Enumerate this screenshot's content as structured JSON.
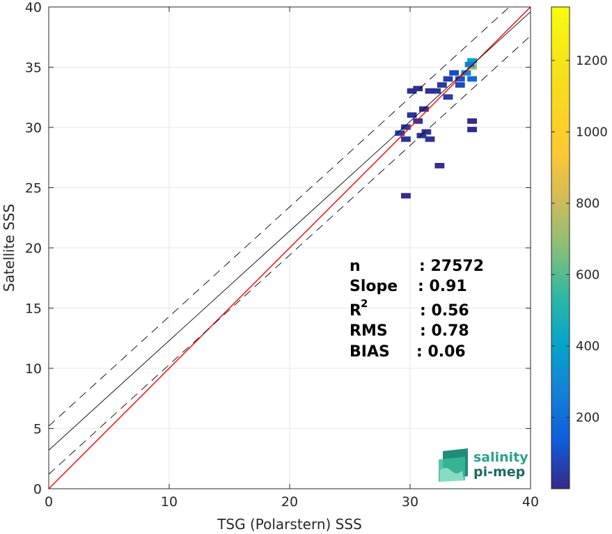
{
  "chart_data": {
    "type": "heatmap",
    "xlabel": "TSG (Polarstern) SSS",
    "ylabel": "Satellite SSS",
    "xlim": [
      0,
      40
    ],
    "ylim": [
      0,
      40
    ],
    "x_ticks": [
      0,
      10,
      20,
      30,
      40
    ],
    "y_ticks": [
      0,
      5,
      10,
      15,
      20,
      25,
      30,
      35,
      40
    ],
    "grid": true,
    "colorbar": {
      "range": [
        0,
        1350
      ],
      "ticks": [
        200,
        400,
        600,
        800,
        1000,
        1200
      ],
      "colormap": "parula"
    },
    "reference_lines": [
      {
        "name": "identity",
        "slope": 1.0,
        "intercept": 0.0,
        "color": "#ff0000",
        "style": "solid"
      },
      {
        "name": "regression",
        "slope": 0.91,
        "intercept": 3.2,
        "color": "#000000",
        "style": "solid"
      },
      {
        "name": "upper-bound",
        "slope": 0.91,
        "intercept": 5.2,
        "color": "#000000",
        "style": "dashed"
      },
      {
        "name": "lower-bound",
        "slope": 0.91,
        "intercept": 1.2,
        "color": "#000000",
        "style": "dashed"
      }
    ],
    "density_cells": [
      {
        "x": 34.0,
        "y": 34.0,
        "count": 120
      },
      {
        "x": 34.5,
        "y": 34.5,
        "count": 300
      },
      {
        "x": 35.0,
        "y": 35.0,
        "count": 700
      },
      {
        "x": 35.0,
        "y": 35.5,
        "count": 400
      },
      {
        "x": 34.8,
        "y": 35.2,
        "count": 250
      },
      {
        "x": 33.5,
        "y": 34.5,
        "count": 90
      },
      {
        "x": 33.0,
        "y": 34.0,
        "count": 60
      },
      {
        "x": 32.5,
        "y": 33.5,
        "count": 40
      },
      {
        "x": 32.0,
        "y": 33.0,
        "count": 30
      },
      {
        "x": 31.5,
        "y": 33.0,
        "count": 20
      },
      {
        "x": 30.5,
        "y": 33.2,
        "count": 15
      },
      {
        "x": 30.0,
        "y": 33.0,
        "count": 10
      },
      {
        "x": 31.0,
        "y": 31.5,
        "count": 20
      },
      {
        "x": 30.0,
        "y": 31.0,
        "count": 25
      },
      {
        "x": 30.5,
        "y": 30.5,
        "count": 30
      },
      {
        "x": 29.5,
        "y": 30.0,
        "count": 40
      },
      {
        "x": 29.0,
        "y": 29.5,
        "count": 60
      },
      {
        "x": 29.5,
        "y": 29.0,
        "count": 35
      },
      {
        "x": 31.5,
        "y": 29.0,
        "count": 30
      },
      {
        "x": 31.2,
        "y": 29.6,
        "count": 20
      },
      {
        "x": 30.8,
        "y": 29.3,
        "count": 25
      },
      {
        "x": 32.3,
        "y": 26.8,
        "count": 10
      },
      {
        "x": 29.5,
        "y": 24.3,
        "count": 5
      },
      {
        "x": 35.0,
        "y": 34.0,
        "count": 180
      },
      {
        "x": 34.0,
        "y": 33.5,
        "count": 80
      },
      {
        "x": 33.0,
        "y": 32.5,
        "count": 50
      },
      {
        "x": 35.0,
        "y": 30.5,
        "count": 5
      },
      {
        "x": 35.0,
        "y": 29.8,
        "count": 5
      }
    ]
  },
  "stats": {
    "n_label": "n",
    "n_value": ": 27572",
    "slope_label": "Slope",
    "slope_value": ": 0.91",
    "r2_label": "R",
    "r2_sup": "2",
    "r2_value": ": 0.56",
    "rms_label": "RMS",
    "rms_value": ": 0.78",
    "bias_label": "BIAS",
    "bias_value": ": 0.06"
  },
  "logo": {
    "line1": "salinity",
    "line2": "pi-mep"
  },
  "colors": {
    "identity_line": "#ff0000",
    "regression_line": "#000000",
    "logo_teal": "#2aa38a",
    "logo_dark": "#1a6b60"
  }
}
